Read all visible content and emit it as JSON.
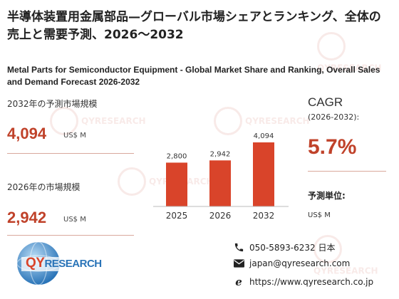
{
  "title_jp": "半導体装置用金属部品—グローバル市場シェアとランキング、全体の売上と需要予測、2026～2032",
  "title_en": "Metal Parts for Semiconductor Equipment - Global Market Share and Ranking, Overall Sales and Demand Forecast 2026-2032",
  "left": {
    "size_2032_label": "2032年の予測市場規模",
    "size_2032_value": "4,094",
    "size_2032_unit": "US$ M",
    "size_2026_label": "2026年の市場規模",
    "size_2026_value": "2,942",
    "size_2026_unit": "US$ M"
  },
  "right": {
    "cagr_label": "CAGR",
    "cagr_period": "(2026-2032):",
    "cagr_value": "5.7%",
    "pred_unit_label": "予測単位:",
    "pred_unit_value": "US$ M"
  },
  "chart_data": {
    "type": "bar",
    "categories": [
      "2025",
      "2026",
      "2032"
    ],
    "values": [
      2800,
      2942,
      4094
    ],
    "value_labels": [
      "2,800",
      "2,942",
      "4,094"
    ],
    "bar_color": "#d9442a"
  },
  "logo": {
    "text_red": "QY",
    "text_blue": "RESEARCH"
  },
  "contact": {
    "phone": "050-5893-6232 日本",
    "email": "japan@qyresearch.com",
    "web": "https://www.qyresearch.co.jp"
  },
  "watermark_text": "QYRESEARCH",
  "icons": [
    "phone-icon",
    "mail-icon",
    "web-icon",
    "globe-logo-icon"
  ]
}
